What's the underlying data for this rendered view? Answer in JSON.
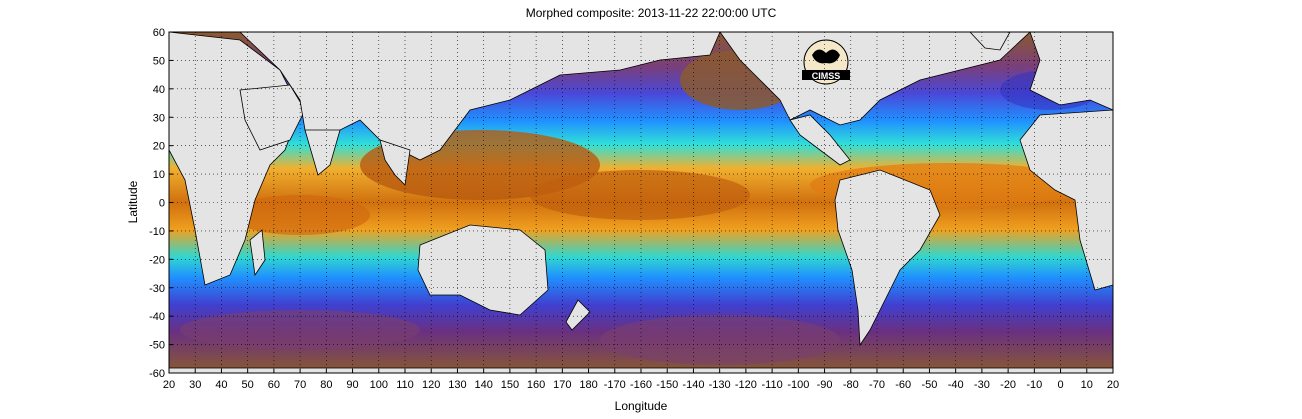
{
  "title": "Morphed composite: 2013-11-22 22:00:00 UTC",
  "xlabel": "Longitude",
  "ylabel": "Latitude",
  "logo_text": "CIMSS",
  "x_ticks": [
    "20",
    "30",
    "40",
    "50",
    "60",
    "70",
    "80",
    "90",
    "100",
    "110",
    "120",
    "130",
    "140",
    "150",
    "160",
    "170",
    "180",
    "-170",
    "-160",
    "-150",
    "-140",
    "-130",
    "-120",
    "-110",
    "-100",
    "-90",
    "-80",
    "-70",
    "-60",
    "-50",
    "-40",
    "-30",
    "-20",
    "-10",
    "0",
    "10",
    "20"
  ],
  "y_ticks": [
    "60",
    "50",
    "40",
    "30",
    "20",
    "10",
    "0",
    "-10",
    "-20",
    "-30",
    "-40",
    "-50",
    "-60"
  ],
  "colors": {
    "land": "#e4e4e4",
    "dry": "#8a5a30",
    "very_dry": "#6a2c7a",
    "low_moisture": "#3a3ad0",
    "mid_moisture": "#1e8cff",
    "moist": "#2ee0e0",
    "humid": "#f0a020",
    "very_humid": "#c05a0c"
  }
}
